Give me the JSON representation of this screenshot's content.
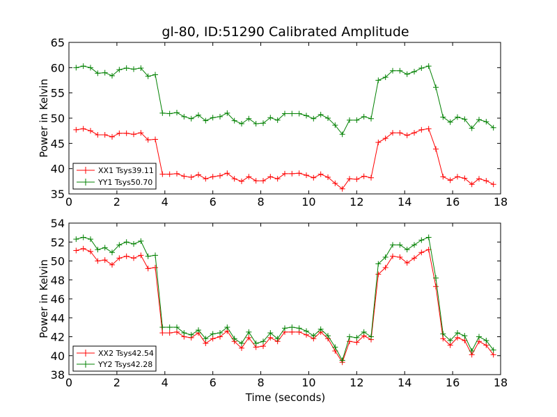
{
  "chart_data": [
    {
      "type": "line",
      "title": "gl-80, ID:51290 Calibrated Amplitude",
      "xlabel": "",
      "ylabel": "Power in Kelvin",
      "xlim": [
        0,
        18
      ],
      "ylim": [
        35,
        65
      ],
      "xticks": [
        "0",
        "2",
        "4",
        "6",
        "8",
        "10",
        "12",
        "14",
        "16",
        "18"
      ],
      "yticks": [
        "35",
        "40",
        "45",
        "50",
        "55",
        "60",
        "65"
      ],
      "legend_position": "lower-left",
      "x": [
        0.3,
        0.6,
        0.9,
        1.2,
        1.5,
        1.8,
        2.1,
        2.4,
        2.7,
        3.0,
        3.3,
        3.6,
        3.9,
        4.2,
        4.5,
        4.8,
        5.1,
        5.4,
        5.7,
        6.0,
        6.3,
        6.6,
        6.9,
        7.2,
        7.5,
        7.8,
        8.1,
        8.4,
        8.7,
        9.0,
        9.3,
        9.6,
        9.9,
        10.2,
        10.5,
        10.8,
        11.1,
        11.4,
        11.7,
        12.0,
        12.3,
        12.6,
        12.9,
        13.2,
        13.5,
        13.8,
        14.1,
        14.4,
        14.7,
        15.0,
        15.3,
        15.6,
        15.9,
        16.2,
        16.5,
        16.8,
        17.1,
        17.4,
        17.7
      ],
      "series": [
        {
          "name": "XX1 Tsys39.11",
          "color": "#ff0000",
          "values": [
            47.7,
            47.9,
            47.5,
            46.7,
            46.7,
            46.3,
            47.0,
            47.0,
            46.8,
            47.1,
            45.7,
            45.8,
            38.9,
            38.9,
            39.0,
            38.5,
            38.3,
            38.8,
            38.0,
            38.4,
            38.6,
            39.1,
            38.0,
            37.5,
            38.4,
            37.6,
            37.6,
            38.4,
            38.0,
            39.0,
            39.0,
            39.1,
            38.7,
            38.2,
            38.9,
            38.3,
            37.1,
            36.0,
            38.0,
            37.9,
            38.5,
            38.2,
            45.2,
            46.0,
            47.1,
            47.1,
            46.6,
            47.1,
            47.7,
            47.9,
            43.9,
            38.4,
            37.7,
            38.4,
            38.1,
            36.9,
            38.0,
            37.6,
            36.9
          ]
        },
        {
          "name": "YY1 Tsys50.70",
          "color": "#008000",
          "values": [
            60.0,
            60.3,
            60.0,
            58.9,
            59.0,
            58.4,
            59.6,
            59.9,
            59.7,
            59.9,
            58.3,
            58.6,
            51.0,
            50.9,
            51.1,
            50.3,
            49.9,
            50.6,
            49.5,
            50.1,
            50.3,
            51.0,
            49.5,
            48.9,
            49.9,
            48.9,
            49.0,
            50.1,
            49.6,
            50.9,
            50.9,
            50.9,
            50.5,
            49.9,
            50.7,
            50.0,
            48.6,
            46.8,
            49.6,
            49.6,
            50.3,
            49.9,
            57.5,
            58.1,
            59.4,
            59.4,
            58.7,
            59.2,
            59.9,
            60.3,
            56.1,
            50.2,
            49.2,
            50.2,
            49.8,
            48.0,
            49.7,
            49.3,
            48.1
          ]
        }
      ]
    },
    {
      "type": "line",
      "title": "",
      "xlabel": "Time (seconds)",
      "ylabel": "Power in Kelvin",
      "xlim": [
        0,
        18
      ],
      "ylim": [
        38,
        54
      ],
      "xticks": [
        "0",
        "2",
        "4",
        "6",
        "8",
        "10",
        "12",
        "14",
        "16",
        "18"
      ],
      "yticks": [
        "38",
        "40",
        "42",
        "44",
        "46",
        "48",
        "50",
        "52",
        "54"
      ],
      "legend_position": "lower-left",
      "x": [
        0.3,
        0.6,
        0.9,
        1.2,
        1.5,
        1.8,
        2.1,
        2.4,
        2.7,
        3.0,
        3.3,
        3.6,
        3.9,
        4.2,
        4.5,
        4.8,
        5.1,
        5.4,
        5.7,
        6.0,
        6.3,
        6.6,
        6.9,
        7.2,
        7.5,
        7.8,
        8.1,
        8.4,
        8.7,
        9.0,
        9.3,
        9.6,
        9.9,
        10.2,
        10.5,
        10.8,
        11.1,
        11.4,
        11.7,
        12.0,
        12.3,
        12.6,
        12.9,
        13.2,
        13.5,
        13.8,
        14.1,
        14.4,
        14.7,
        15.0,
        15.3,
        15.6,
        15.9,
        16.2,
        16.5,
        16.8,
        17.1,
        17.4,
        17.7
      ],
      "series": [
        {
          "name": "XX2 Tsys42.54",
          "color": "#ff0000",
          "values": [
            51.1,
            51.3,
            51.0,
            50.0,
            50.1,
            49.6,
            50.3,
            50.5,
            50.3,
            50.6,
            49.2,
            49.3,
            42.4,
            42.4,
            42.5,
            42.0,
            41.9,
            42.4,
            41.3,
            41.8,
            42.0,
            42.6,
            41.5,
            40.8,
            41.9,
            40.9,
            41.0,
            41.9,
            41.5,
            42.5,
            42.5,
            42.5,
            42.2,
            41.8,
            42.5,
            41.8,
            40.5,
            39.3,
            41.5,
            41.4,
            42.1,
            41.7,
            48.6,
            49.3,
            50.5,
            50.4,
            49.8,
            50.3,
            50.9,
            51.2,
            47.3,
            41.8,
            41.1,
            41.9,
            41.6,
            40.1,
            41.5,
            41.1,
            40.1
          ]
        },
        {
          "name": "YY2 Tsys42.28",
          "color": "#008000",
          "values": [
            52.3,
            52.5,
            52.3,
            51.2,
            51.4,
            50.9,
            51.7,
            52.0,
            51.8,
            52.1,
            50.5,
            50.6,
            43.0,
            43.0,
            43.0,
            42.4,
            42.2,
            42.7,
            41.8,
            42.3,
            42.4,
            43.0,
            41.8,
            41.3,
            42.5,
            41.3,
            41.5,
            42.4,
            41.8,
            42.9,
            43.0,
            42.9,
            42.6,
            42.1,
            42.8,
            42.1,
            40.9,
            39.5,
            42.0,
            41.9,
            42.5,
            42.0,
            49.7,
            50.4,
            51.7,
            51.7,
            51.2,
            51.7,
            52.2,
            52.5,
            48.2,
            42.3,
            41.6,
            42.4,
            42.1,
            40.5,
            42.0,
            41.6,
            40.6
          ]
        }
      ]
    }
  ]
}
